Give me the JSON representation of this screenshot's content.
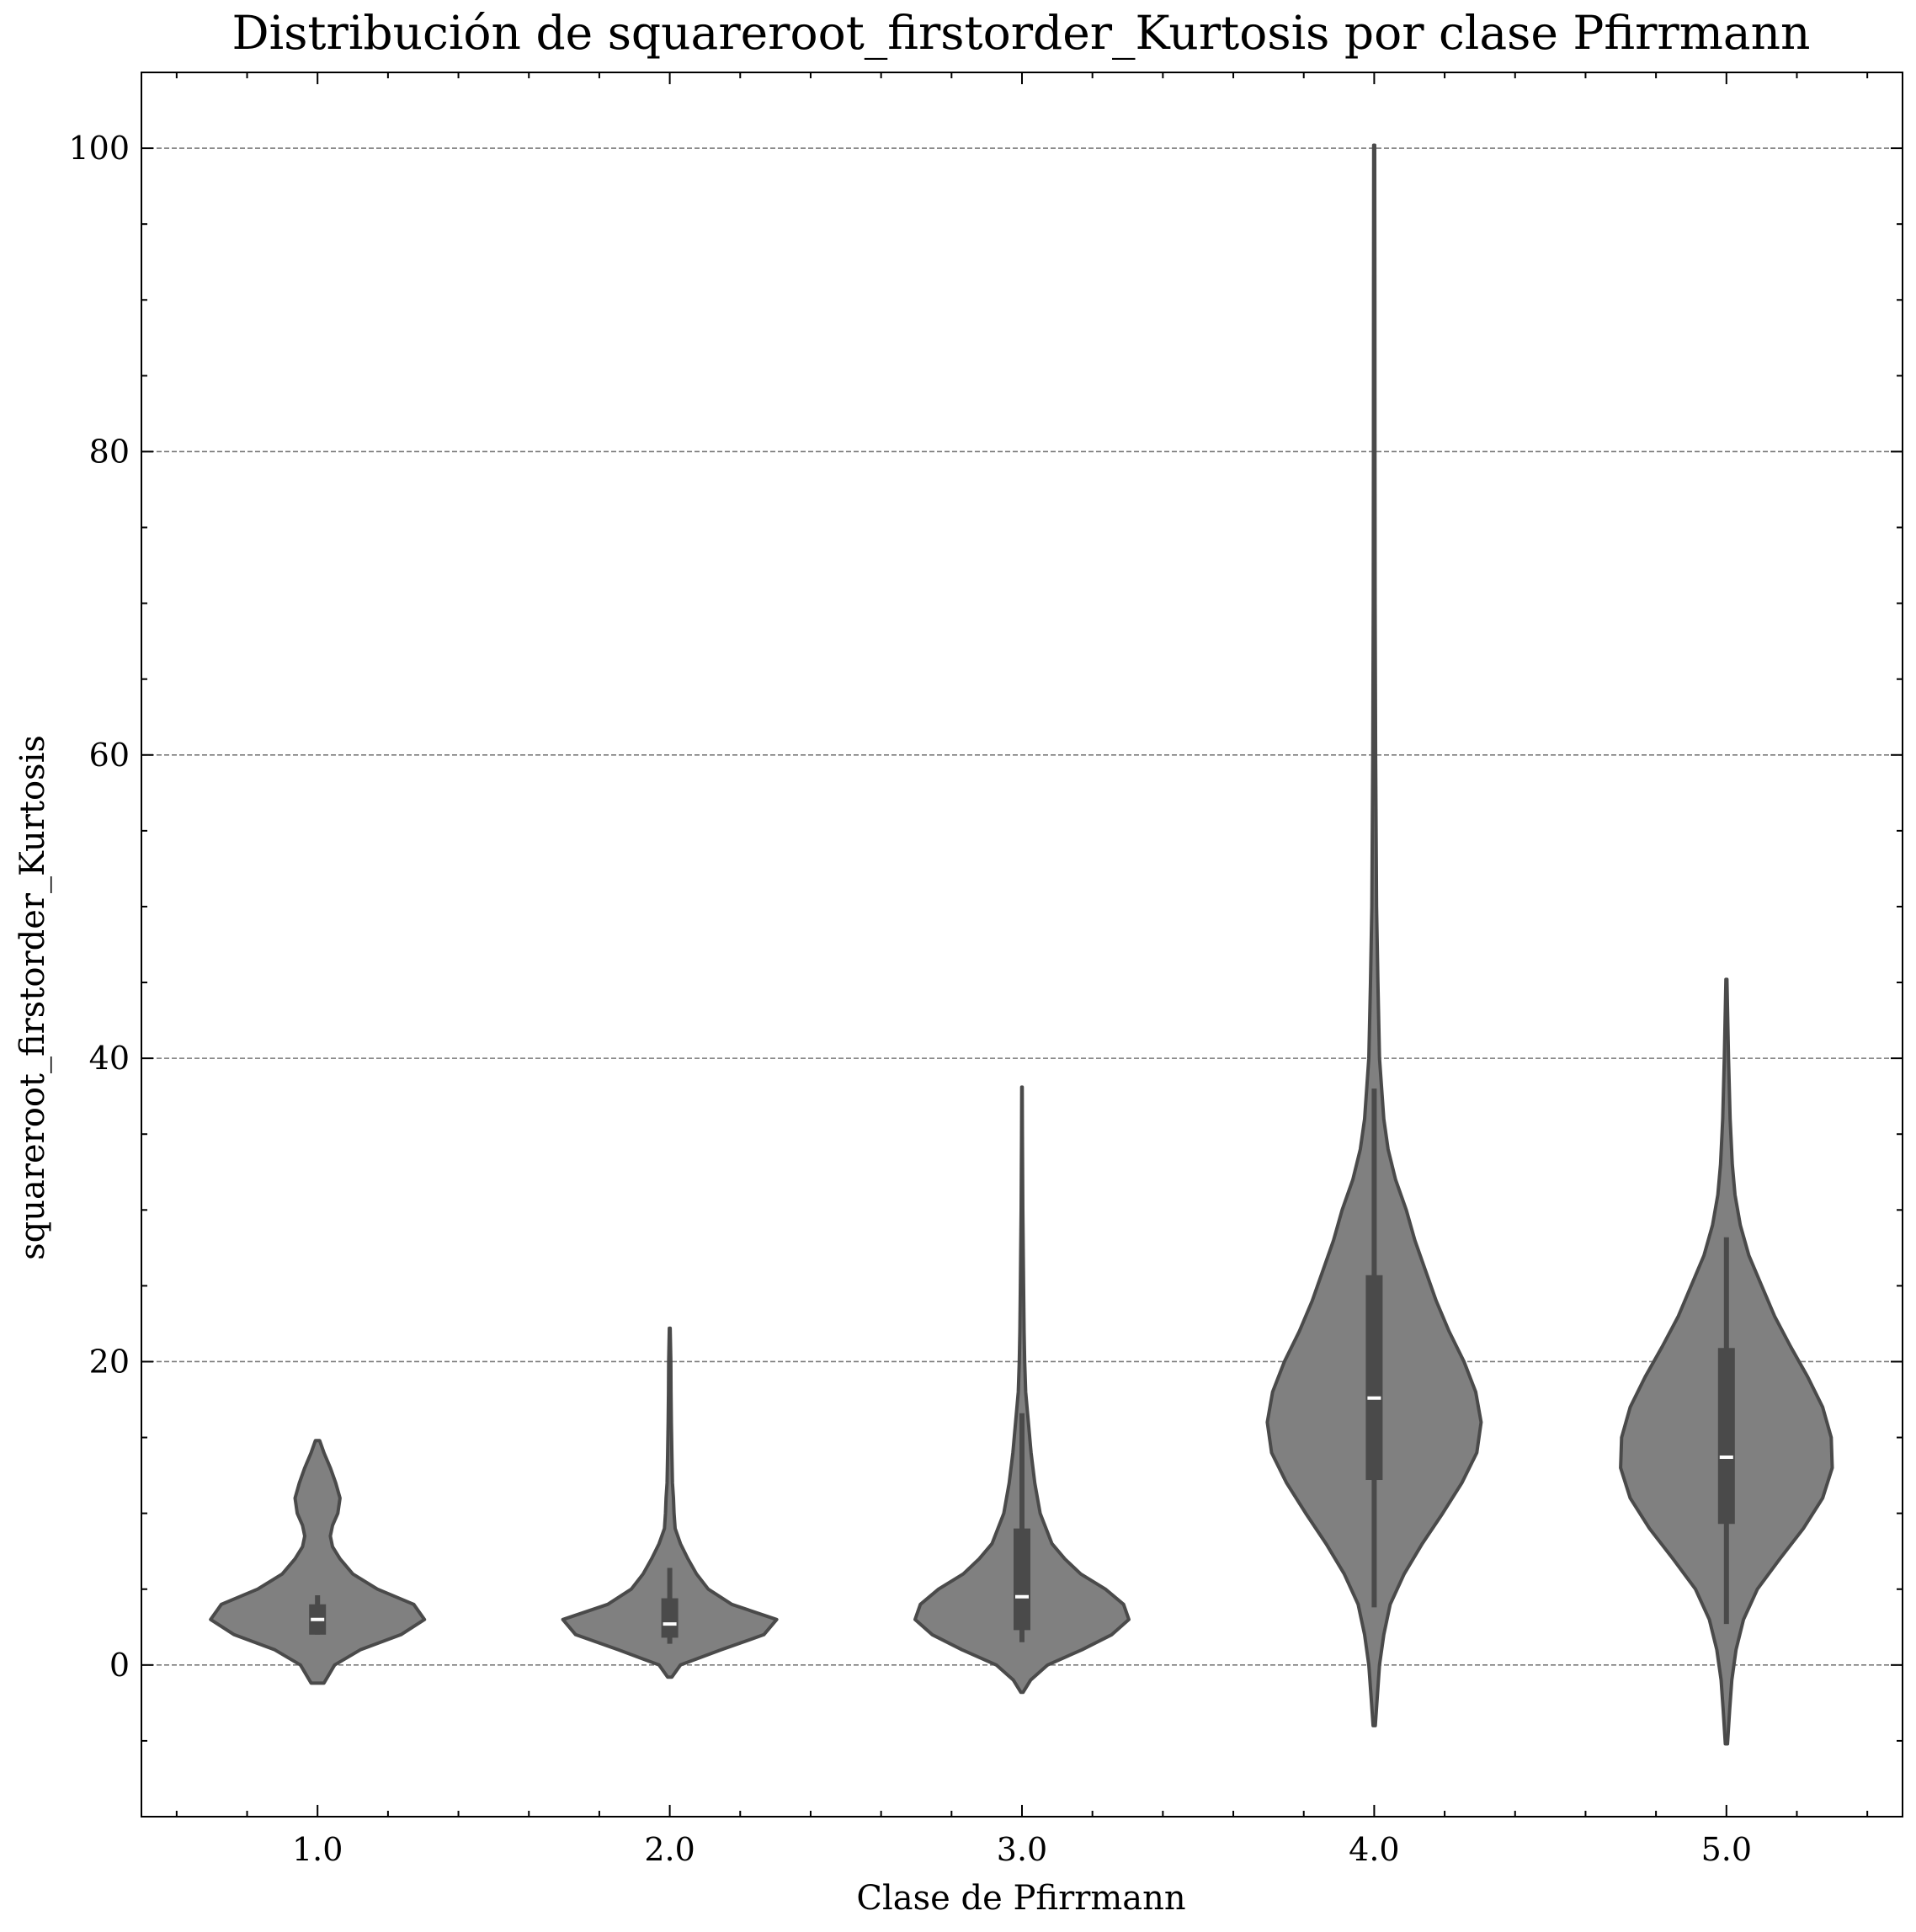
{
  "chart_data": {
    "type": "violin",
    "title": "Distribución de squareroot_firstorder_Kurtosis por clase Pfirrmann",
    "xlabel": "Clase de Pfirrmann",
    "ylabel": "squareroot_firstorder_Kurtosis",
    "categories": [
      "1.0",
      "2.0",
      "3.0",
      "4.0",
      "5.0"
    ],
    "ylim": [
      -10,
      105
    ],
    "yticks": [
      0,
      20,
      40,
      60,
      80,
      100
    ],
    "grid": "horizontal dashed",
    "violin_color": "#808080",
    "edge_color": "#4a4a4a",
    "median_color": "#ffffff",
    "violins": [
      {
        "category": "1.0",
        "kde": {
          "y": [
            -1.2,
            0,
            1,
            2,
            3,
            4,
            5,
            6,
            7,
            7.8,
            8.5,
            9.2,
            10,
            11,
            12,
            13,
            14,
            14.8
          ],
          "w": [
            0.06,
            0.16,
            0.4,
            0.78,
            1.0,
            0.9,
            0.56,
            0.33,
            0.21,
            0.14,
            0.12,
            0.14,
            0.19,
            0.21,
            0.17,
            0.12,
            0.06,
            0.02
          ]
        },
        "whisker": [
          2.0,
          4.6
        ],
        "q1": 2.0,
        "q3": 4.0,
        "median": 3.0
      },
      {
        "category": "2.0",
        "kde": {
          "y": [
            -0.8,
            0,
            1,
            2,
            3,
            4,
            5,
            6,
            7,
            8,
            9,
            10,
            11,
            12,
            14,
            16,
            18,
            20,
            22.2
          ],
          "w": [
            0.02,
            0.1,
            0.48,
            0.88,
            1.0,
            0.58,
            0.36,
            0.25,
            0.17,
            0.1,
            0.05,
            0.04,
            0.035,
            0.025,
            0.02,
            0.015,
            0.012,
            0.01,
            0.004
          ]
        },
        "whisker": [
          1.4,
          6.4
        ],
        "q1": 1.8,
        "q3": 4.4,
        "median": 2.7
      },
      {
        "category": "3.0",
        "kde": {
          "y": [
            -1.8,
            -1,
            0,
            1,
            2,
            3,
            4,
            5,
            6,
            7,
            8,
            10,
            12,
            14,
            16,
            18,
            20,
            22,
            25,
            30,
            35,
            38.1
          ],
          "w": [
            0.01,
            0.08,
            0.24,
            0.56,
            0.84,
            1.0,
            0.95,
            0.78,
            0.55,
            0.4,
            0.28,
            0.17,
            0.12,
            0.085,
            0.06,
            0.035,
            0.025,
            0.02,
            0.015,
            0.008,
            0.004,
            0.002
          ]
        },
        "whisker": [
          1.5,
          16.6
        ],
        "q1": 2.3,
        "q3": 9.0,
        "median": 4.5
      },
      {
        "category": "4.0",
        "kde": {
          "y": [
            -4,
            -2,
            0,
            2,
            4,
            6,
            8,
            10,
            12,
            14,
            16,
            18,
            20,
            22,
            24,
            26,
            28,
            30,
            32,
            34,
            36,
            40,
            45,
            50,
            60,
            70,
            80,
            90,
            100.2
          ],
          "w": [
            0.01,
            0.03,
            0.05,
            0.09,
            0.15,
            0.28,
            0.45,
            0.64,
            0.82,
            0.96,
            1.0,
            0.95,
            0.84,
            0.7,
            0.58,
            0.48,
            0.38,
            0.3,
            0.2,
            0.13,
            0.09,
            0.05,
            0.035,
            0.022,
            0.013,
            0.009,
            0.007,
            0.006,
            0.005
          ]
        },
        "whisker": [
          3.8,
          38.0
        ],
        "q1": 12.2,
        "q3": 25.7,
        "median": 17.6
      },
      {
        "category": "5.0",
        "kde": {
          "y": [
            -5.2,
            -3,
            -1,
            1,
            3,
            5,
            7,
            9,
            11,
            13,
            15,
            17,
            19,
            21,
            23,
            25,
            27,
            29,
            31,
            33,
            36,
            40,
            45.2
          ],
          "w": [
            0.01,
            0.03,
            0.05,
            0.09,
            0.16,
            0.29,
            0.5,
            0.72,
            0.9,
            0.99,
            0.98,
            0.9,
            0.76,
            0.6,
            0.45,
            0.33,
            0.21,
            0.13,
            0.08,
            0.055,
            0.035,
            0.02,
            0.005
          ]
        },
        "whisker": [
          2.7,
          28.2
        ],
        "q1": 9.3,
        "q3": 20.9,
        "median": 13.7
      }
    ]
  }
}
